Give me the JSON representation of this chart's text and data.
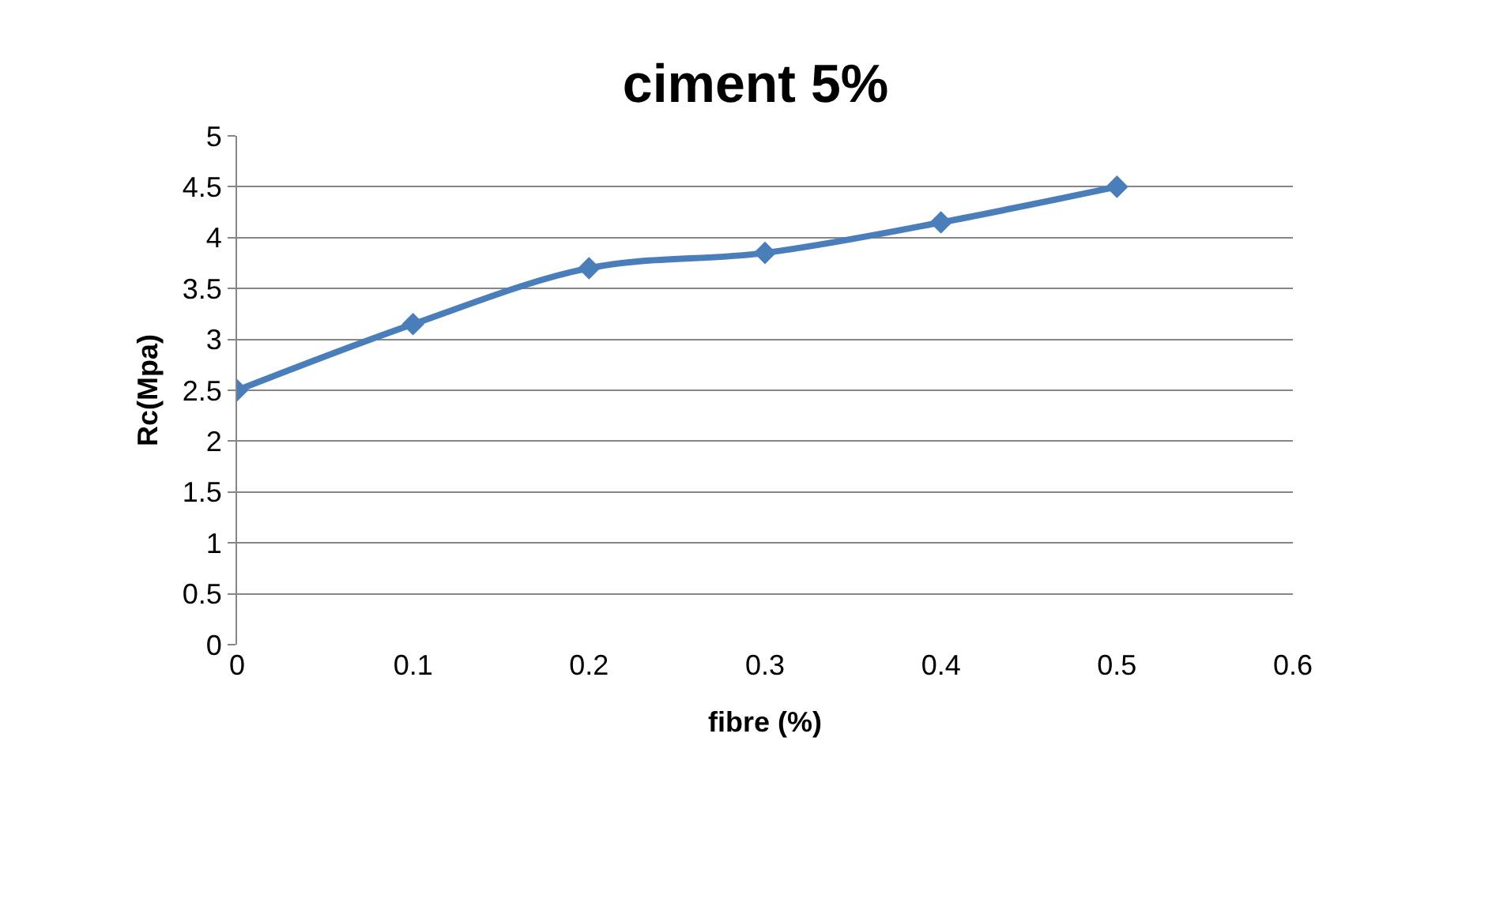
{
  "chart_data": {
    "type": "line",
    "title": "ciment 5%",
    "xlabel": "fibre (%)",
    "ylabel": "Rc(Mpa)",
    "x": [
      0,
      0.1,
      0.2,
      0.3,
      0.4,
      0.5
    ],
    "series": [
      {
        "color": "#4a7ebb",
        "values": [
          2.5,
          3.15,
          3.7,
          3.85,
          4.15,
          4.5
        ]
      }
    ],
    "xlim": [
      0,
      0.6
    ],
    "xticks": [
      0,
      0.1,
      0.2,
      0.3,
      0.4,
      0.5,
      0.6
    ],
    "ylim": [
      0,
      5
    ],
    "yticks": [
      0,
      0.5,
      1,
      1.5,
      2,
      2.5,
      3,
      3.5,
      4,
      4.5,
      5
    ],
    "grid": "y",
    "legend": false,
    "marker": "diamond",
    "line_style": "solid"
  }
}
